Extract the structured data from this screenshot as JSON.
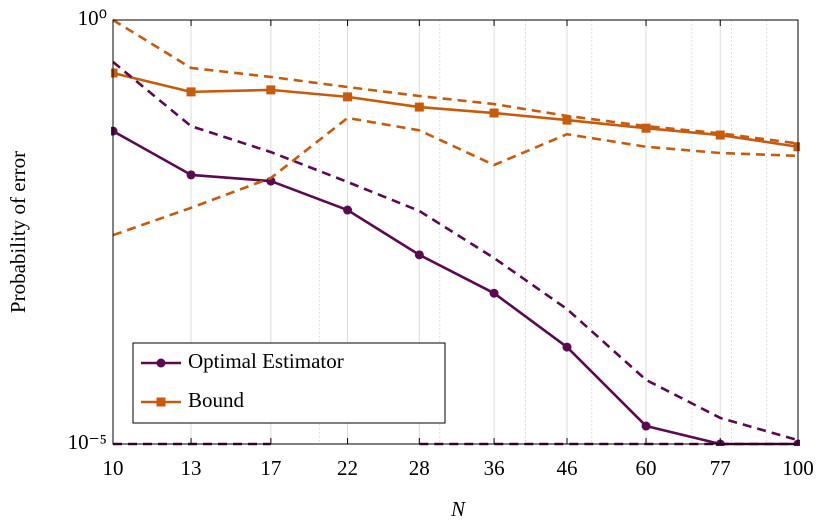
{
  "chart_data": {
    "type": "line",
    "xlabel": "N",
    "ylabel": "Probability of error",
    "x": [
      10,
      13,
      17,
      22,
      28,
      36,
      46,
      60,
      77,
      100
    ],
    "xlim": [
      10,
      100
    ],
    "xticks": [
      10,
      13,
      17,
      22,
      28,
      36,
      46,
      60,
      77,
      100
    ],
    "ylim": [
      1e-05,
      1
    ],
    "yticks": [
      {
        "value": 1,
        "label": "10⁰"
      },
      {
        "value": 1e-05,
        "label": "10⁻⁵"
      }
    ],
    "xscale": "log",
    "yscale": "log",
    "grid": true,
    "xminor_grid": true,
    "legend": "lower left",
    "series": [
      {
        "name": "Optimal Estimator",
        "color": "#5a0a4e",
        "marker": "circle",
        "dashed": false,
        "values": [
          0.049,
          0.0149,
          0.0126,
          0.00574,
          0.0017,
          0.0006,
          0.000139,
          1.63e-05,
          1e-05,
          1e-05
        ]
      },
      {
        "name": "Bound",
        "color": "#c85a0c",
        "marker": "square",
        "dashed": false,
        "values": [
          0.237,
          0.142,
          0.15,
          0.124,
          0.094,
          0.08,
          0.066,
          0.053,
          0.044,
          0.032
        ]
      },
      {
        "color": "#5a0a4e",
        "dashed": true,
        "values": [
          0.32,
          0.056,
          0.0277,
          0.0123,
          0.0056,
          0.00156,
          0.00039,
          5.7e-05,
          2.03e-05,
          1.11e-05
        ]
      },
      {
        "color": "#5a0a4e",
        "dashed": true,
        "values": [
          1e-05,
          1e-05,
          1e-05,
          null,
          1e-05,
          1e-05,
          1e-05,
          1e-05,
          1e-05,
          1e-05
        ]
      },
      {
        "color": "#c85a0c",
        "dashed": true,
        "values": [
          1.0,
          0.272,
          0.213,
          0.162,
          0.127,
          0.102,
          0.074,
          0.056,
          0.046,
          0.035
        ]
      },
      {
        "color": "#c85a0c",
        "dashed": true,
        "values": [
          0.0029,
          0.0061,
          0.0137,
          0.07,
          0.05,
          0.0195,
          0.045,
          0.032,
          0.027,
          0.025
        ]
      }
    ]
  }
}
